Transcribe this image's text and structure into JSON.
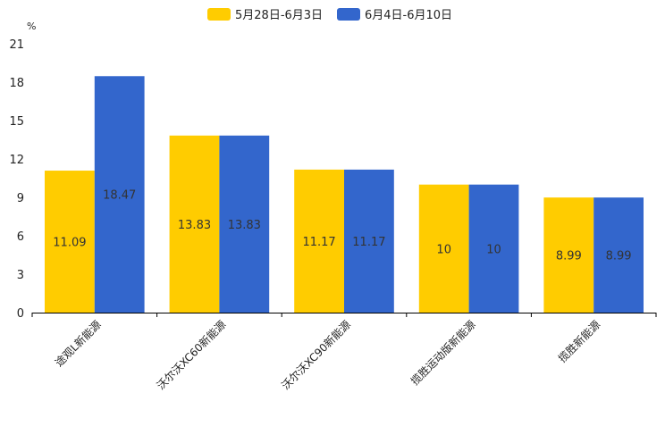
{
  "chart_data": {
    "type": "bar",
    "title": "",
    "ylabel": "%",
    "xlabel": "",
    "ylim": [
      0,
      21
    ],
    "yticks": [
      0,
      3,
      6,
      9,
      12,
      15,
      18,
      21
    ],
    "categories": [
      "途观L新能源",
      "沃尔沃XC60新能源",
      "沃尔沃XC90新能源",
      "揽胜运动版新能源",
      "揽胜新能源"
    ],
    "series": [
      {
        "name": "5月28日-6月3日",
        "color": "#FFCC00",
        "values": [
          11.09,
          13.83,
          11.17,
          10,
          8.99
        ],
        "labels": [
          "11.09",
          "13.83",
          "11.17",
          "10",
          "8.99"
        ]
      },
      {
        "name": "6月4日-6月10日",
        "color": "#3366CC",
        "values": [
          18.47,
          13.83,
          11.17,
          10,
          8.99
        ],
        "labels": [
          "18.47",
          "13.83",
          "11.17",
          "10",
          "8.99"
        ]
      }
    ],
    "legend": "top-center",
    "grid": false
  }
}
